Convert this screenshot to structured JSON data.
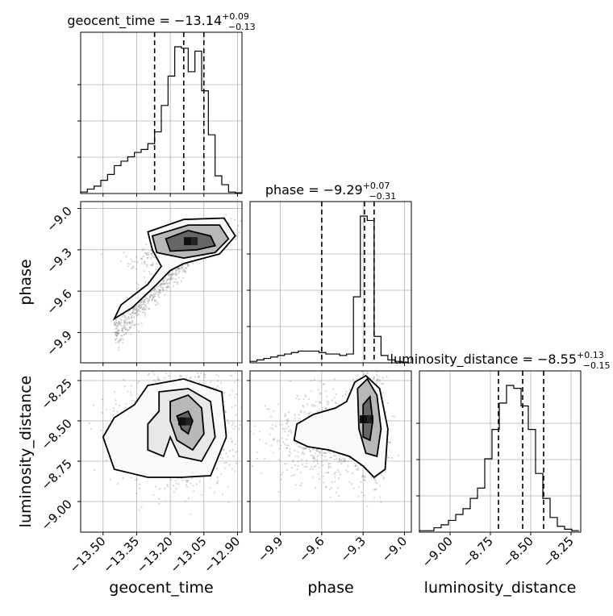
{
  "chart_data": {
    "type": "corner",
    "parameters": [
      "geocent_time",
      "phase",
      "luminosity_distance"
    ],
    "titles": [
      {
        "param": "geocent_time",
        "prefix": "geocent_time = ",
        "median": "−13.14",
        "plus": "+0.09",
        "minus": "−0.13"
      },
      {
        "param": "phase",
        "prefix": "phase = ",
        "median": "−9.29",
        "plus": "+0.07",
        "minus": "−0.31"
      },
      {
        "param": "luminosity_distance",
        "prefix": "luminosity_distance = ",
        "median": "−8.55",
        "plus": "+0.13",
        "minus": "−0.15"
      }
    ],
    "axes": {
      "geocent_time": {
        "range": [
          -13.6,
          -12.88
        ],
        "ticks": [
          -13.5,
          -13.35,
          -13.2,
          -13.05,
          -12.9
        ],
        "tick_labels": [
          "−13.50",
          "−13.35",
          "−13.20",
          "−13.05",
          "−12.90"
        ],
        "quantiles": [
          -13.27,
          -13.14,
          -13.05
        ]
      },
      "phase": {
        "range": [
          -10.12,
          -8.95
        ],
        "ticks": [
          -9.9,
          -9.6,
          -9.3,
          -9.0
        ],
        "tick_labels": [
          "−9.9",
          "−9.6",
          "−9.3",
          "−9.0"
        ],
        "quantiles": [
          -9.6,
          -9.29,
          -9.22
        ]
      },
      "luminosity_distance": {
        "range": [
          -9.19,
          -8.19
        ],
        "ticks": [
          -9.0,
          -8.75,
          -8.5,
          -8.25
        ],
        "tick_labels": [
          "−9.00",
          "−8.75",
          "−8.50",
          "−8.25"
        ],
        "quantiles": [
          -8.7,
          -8.55,
          -8.42
        ]
      }
    },
    "histograms": {
      "geocent_time": {
        "edges": [
          -13.6,
          -13.57,
          -13.54,
          -13.51,
          -13.48,
          -13.45,
          -13.42,
          -13.39,
          -13.36,
          -13.33,
          -13.3,
          -13.27,
          -13.24,
          -13.21,
          -13.18,
          -13.15,
          -13.12,
          -13.09,
          -13.06,
          -13.03,
          -13.0,
          -12.97,
          -12.94,
          -12.91,
          -12.88
        ],
        "counts": [
          1,
          3,
          5,
          9,
          13,
          19,
          22,
          25,
          28,
          30,
          34,
          42,
          60,
          80,
          100,
          99,
          83,
          97,
          70,
          40,
          12,
          6,
          1,
          0.5
        ]
      },
      "phase": {
        "edges": [
          -10.12,
          -10.07,
          -10.02,
          -9.97,
          -9.92,
          -9.87,
          -9.82,
          -9.77,
          -9.72,
          -9.67,
          -9.62,
          -9.57,
          -9.52,
          -9.47,
          -9.42,
          -9.37,
          -9.32,
          -9.27,
          -9.22,
          -9.17,
          -9.12,
          -9.07,
          -9.02,
          -8.97
        ],
        "counts": [
          1,
          2,
          3,
          4,
          5,
          6,
          7,
          8,
          8,
          8,
          7,
          6,
          6,
          5,
          6,
          45,
          100,
          97,
          18,
          5,
          2,
          1,
          0.5
        ]
      },
      "luminosity_distance": {
        "edges": [
          -9.19,
          -9.145,
          -9.1,
          -9.055,
          -9.01,
          -8.965,
          -8.92,
          -8.875,
          -8.83,
          -8.785,
          -8.74,
          -8.695,
          -8.65,
          -8.605,
          -8.56,
          -8.515,
          -8.47,
          -8.425,
          -8.38,
          -8.335,
          -8.29,
          -8.245,
          -8.2
        ],
        "counts": [
          1,
          1,
          3,
          5,
          8,
          12,
          16,
          23,
          30,
          50,
          70,
          88,
          100,
          98,
          86,
          70,
          40,
          23,
          10,
          4,
          2,
          1
        ]
      }
    },
    "grid": true
  }
}
